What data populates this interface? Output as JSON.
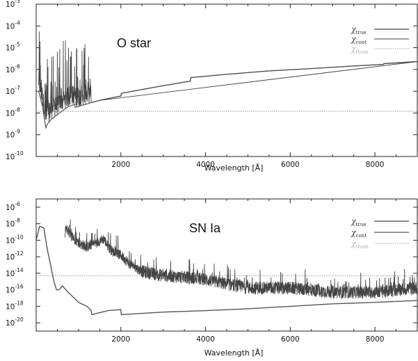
{
  "chart_data": [
    {
      "type": "line",
      "title": "O star",
      "xlabel": "Wavelength [Å]",
      "ylabel": "",
      "xlim": [
        0,
        9000
      ],
      "ylim": [
        1e-10,
        0.001
      ],
      "log_y": true,
      "grid": false,
      "legend_position": "top-right",
      "x_ticks": [
        2000,
        4000,
        6000,
        8000
      ],
      "x_tick_labels": [
        "2000",
        "4000",
        "6000",
        "8000"
      ],
      "y_ticks": [
        1e-10,
        1e-09,
        1e-08,
        1e-07,
        1e-06,
        1e-05,
        0.0001,
        0.001
      ],
      "y_tick_labels": [
        {
          "base": "10",
          "exp": "-10"
        },
        {
          "base": "10",
          "exp": "-9"
        },
        {
          "base": "10",
          "exp": "-8"
        },
        {
          "base": "10",
          "exp": "-7"
        },
        {
          "base": "10",
          "exp": "-6"
        },
        {
          "base": "10",
          "exp": "-5"
        },
        {
          "base": "10",
          "exp": "-4"
        },
        {
          "base": "10",
          "exp": "-3"
        }
      ],
      "series": [
        {
          "name": "χ_true",
          "legend_symbol": "χ",
          "legend_sub": "true",
          "color": "#444444",
          "style": "solid",
          "noisy": true,
          "x": [
            60,
            150,
            228,
            260,
            350,
            450,
            550,
            650,
            750,
            850,
            912,
            920,
            1000,
            1100,
            1200,
            1300,
            1500,
            1700,
            2000,
            2010,
            2500,
            3000,
            3640,
            3650,
            4500,
            5500,
            6500,
            7500,
            8200,
            8210,
            9000
          ],
          "y": [
            1e-07,
            2e-08,
            2e-09,
            3e-09,
            5e-09,
            7e-09,
            1e-08,
            1.4e-08,
            1.9e-08,
            2.3e-08,
            2.5e-08,
            1.8e-08,
            2e-08,
            2.3e-08,
            2.6e-08,
            3e-08,
            3.8e-08,
            4.6e-08,
            6e-08,
            8e-08,
            1.2e-07,
            1.8e-07,
            2.9e-07,
            4.2e-07,
            6e-07,
            8.6e-07,
            1.1e-06,
            1.45e-06,
            1.7e-06,
            1.85e-06,
            2.3e-06
          ]
        },
        {
          "name": "χ_cont",
          "legend_symbol": "χ",
          "legend_sub": "cont",
          "color": "#666666",
          "style": "solid",
          "noisy": false,
          "x": [
            60,
            150,
            228,
            260,
            350,
            450,
            550,
            650,
            750,
            850,
            912,
            920,
            1000,
            1100,
            1200,
            1300,
            1500,
            1700,
            2000,
            2010,
            2500,
            3000,
            3640,
            3650,
            4500,
            5500,
            6500,
            7500,
            8200,
            8210,
            9000
          ],
          "y": [
            1e-07,
            2e-08,
            2e-09,
            3e-09,
            5e-09,
            7e-09,
            1e-08,
            1.4e-08,
            1.9e-08,
            2.3e-08,
            2.5e-08,
            1.8e-08,
            2e-08,
            2.3e-08,
            2.6e-08,
            3e-08,
            3.8e-08,
            4.6e-08,
            6e-08,
            8e-08,
            1.2e-07,
            1.8e-07,
            2.9e-07,
            4.2e-07,
            6e-07,
            8.6e-07,
            1.1e-06,
            1.45e-06,
            1.7e-06,
            1.85e-06,
            2.3e-06
          ]
        },
        {
          "name": "χ_thom",
          "legend_symbol": "χ",
          "legend_sub": "thom",
          "color": "#b5b5b5",
          "style": "dotted",
          "noisy": false,
          "x": [
            0,
            9000
          ],
          "y": [
            1.2e-08,
            1.2e-08
          ]
        }
      ]
    },
    {
      "type": "line",
      "title": "SN Ia",
      "xlabel": "Wavelength [Å]",
      "ylabel": "",
      "xlim": [
        0,
        9000
      ],
      "ylim": [
        1e-21,
        1e-05
      ],
      "log_y": true,
      "grid": false,
      "legend_position": "top-right",
      "x_ticks": [
        2000,
        4000,
        6000,
        8000
      ],
      "x_tick_labels": [
        "2000",
        "4000",
        "6000",
        "8000"
      ],
      "y_ticks": [
        1e-20,
        1e-18,
        1e-16,
        1e-14,
        1e-12,
        1e-10,
        1e-08,
        1e-06
      ],
      "y_tick_labels": [
        {
          "base": "10",
          "exp": "-20"
        },
        {
          "base": "10",
          "exp": "-18"
        },
        {
          "base": "10",
          "exp": "-16"
        },
        {
          "base": "10",
          "exp": "-14"
        },
        {
          "base": "10",
          "exp": "-12"
        },
        {
          "base": "10",
          "exp": "-10"
        },
        {
          "base": "10",
          "exp": "-8"
        },
        {
          "base": "10",
          "exp": "-6"
        }
      ],
      "series": [
        {
          "name": "χ_true",
          "legend_symbol": "χ",
          "legend_sub": "true",
          "color": "#444444",
          "style": "solid",
          "noisy": true,
          "x": [
            680,
            700,
            800,
            900,
            1000,
            1200,
            1400,
            1600,
            1700,
            1800,
            2000,
            2200,
            2500,
            3000,
            3500,
            4000,
            4500,
            5000,
            6000,
            7000,
            8000,
            9000
          ],
          "y": [
            1e-10,
            3e-09,
            3e-10,
            1e-10,
            3e-11,
            1e-11,
            3e-11,
            1e-10,
            1e-11,
            3e-12,
            1e-12,
            1e-13,
            1e-14,
            3e-15,
            2e-15,
            1e-15,
            3e-16,
            1e-16,
            1e-16,
            3e-17,
            3e-17,
            1e-16
          ]
        },
        {
          "name": "χ_cont",
          "legend_symbol": "χ",
          "legend_sub": "cont",
          "color": "#555555",
          "style": "solid",
          "noisy": false,
          "x": [
            0,
            80,
            180,
            260,
            340,
            420,
            480,
            540,
            620,
            700,
            800,
            900,
            1000,
            1200,
            1300,
            1310,
            1700,
            2000,
            2010,
            3000,
            4000,
            5000,
            6000,
            7000,
            8000,
            9000
          ],
          "y": [
            1e-10,
            5e-09,
            3e-09,
            1e-11,
            1e-13,
            1e-15,
            1e-16,
            1e-16,
            3e-16,
            1e-16,
            3e-17,
            1e-17,
            3e-18,
            1e-18,
            3e-19,
            1e-19,
            3e-19,
            4e-19,
            1e-19,
            2e-19,
            3e-19,
            5e-19,
            1e-18,
            2e-18,
            3e-18,
            5e-18
          ]
        },
        {
          "name": "χ_thom",
          "legend_symbol": "χ",
          "legend_sub": "thom",
          "color": "#b5b5b5",
          "style": "dotted",
          "noisy": false,
          "x": [
            0,
            9000
          ],
          "y": [
            5e-15,
            5e-15
          ]
        }
      ]
    }
  ]
}
